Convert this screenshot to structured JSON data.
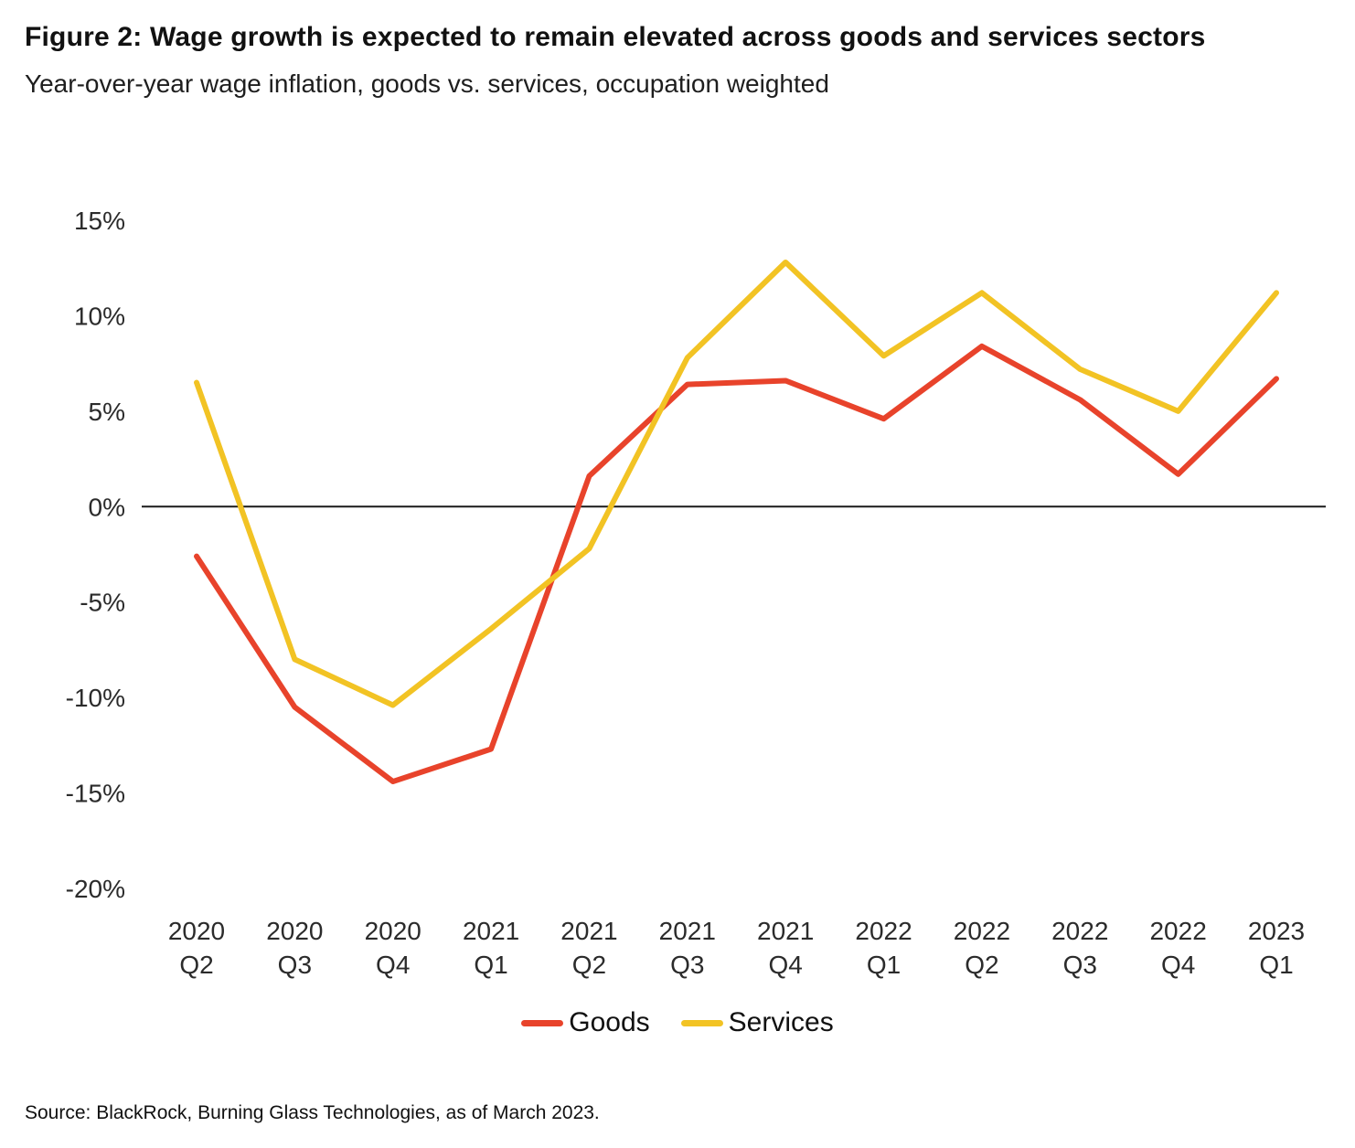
{
  "chart_data": {
    "type": "line",
    "title": "Figure 2: Wage growth is expected to remain elevated across goods and services sectors",
    "subtitle": "Year-over-year wage inflation, goods vs. services, occupation weighted",
    "categories": [
      "2020 Q2",
      "2020 Q3",
      "2020 Q4",
      "2021 Q1",
      "2021 Q2",
      "2021 Q3",
      "2021 Q4",
      "2022 Q1",
      "2022 Q2",
      "2022 Q3",
      "2022 Q4",
      "2023 Q1"
    ],
    "series": [
      {
        "name": "Goods",
        "color": "#E8432B",
        "values": [
          -2.6,
          -10.5,
          -14.4,
          -12.7,
          1.6,
          6.4,
          6.6,
          4.6,
          8.4,
          5.6,
          1.7,
          6.7
        ]
      },
      {
        "name": "Services",
        "color": "#F2C324",
        "values": [
          6.5,
          -8.0,
          -10.4,
          -6.4,
          -2.2,
          7.8,
          12.8,
          7.9,
          11.2,
          7.2,
          5.0,
          11.2
        ]
      }
    ],
    "xlabel": "",
    "ylabel": "",
    "ylim": [
      -20,
      15
    ],
    "yticks": [
      15,
      10,
      5,
      0,
      -5,
      -10,
      -15,
      -20
    ],
    "ytick_suffix": "%",
    "grid": false,
    "zero_line": true,
    "legend_position": "bottom"
  },
  "footer": {
    "source": "Source: BlackRock, Burning Glass Technologies, as of March 2023."
  }
}
